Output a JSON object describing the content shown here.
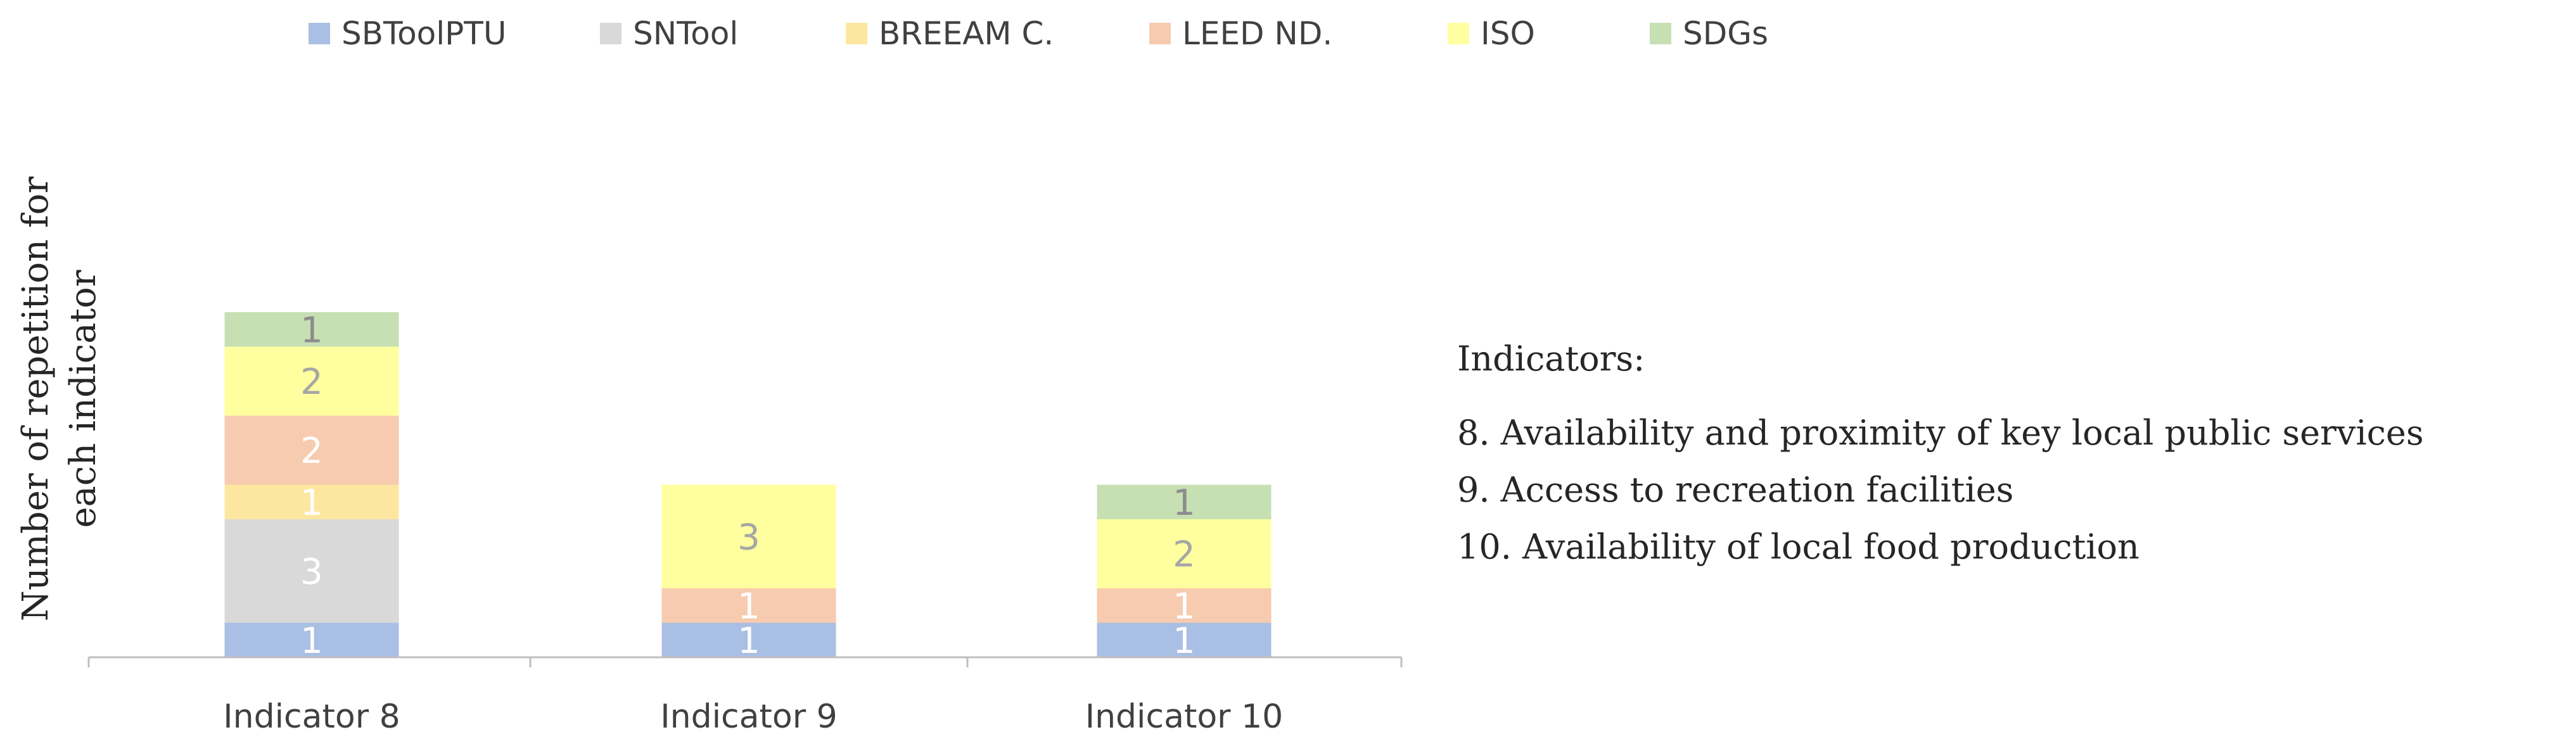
{
  "chart_data": {
    "type": "bar",
    "stacked": true,
    "categories": [
      "Indicator 8",
      "Indicator 9",
      "Indicator 10"
    ],
    "series": [
      {
        "name": "SBToolPTU",
        "values": [
          1,
          1,
          1
        ],
        "color": "#a9bfe3",
        "label_color": "#ffffff"
      },
      {
        "name": "SNTool",
        "values": [
          3,
          0,
          0
        ],
        "color": "#d9d9d9",
        "label_color": "#ffffff"
      },
      {
        "name": "BREEAM C.",
        "values": [
          1,
          0,
          0
        ],
        "color": "#fde7a0",
        "label_color": "#ffffff"
      },
      {
        "name": "LEED ND.",
        "values": [
          2,
          1,
          1
        ],
        "color": "#f7cbb0",
        "label_color": "#ffffff"
      },
      {
        "name": "ISO",
        "values": [
          2,
          3,
          2
        ],
        "color": "#ffff9f",
        "label_color": "#a6a6a6"
      },
      {
        "name": "SDGs",
        "values": [
          1,
          0,
          1
        ],
        "color": "#c6e0b4",
        "label_color": "#8c8c8c"
      }
    ],
    "ylabel": [
      "Number of repetition for",
      "each indicator"
    ],
    "ylim": [
      0,
      10
    ],
    "legend_position": "top",
    "grid": false,
    "axis_color": "#bfbfbf"
  },
  "notes": {
    "heading": "Indicators:",
    "lines": [
      "8. Availability and proximity of key local public services",
      "9. Access to recreation facilities",
      "10. Availability of local food production"
    ]
  }
}
